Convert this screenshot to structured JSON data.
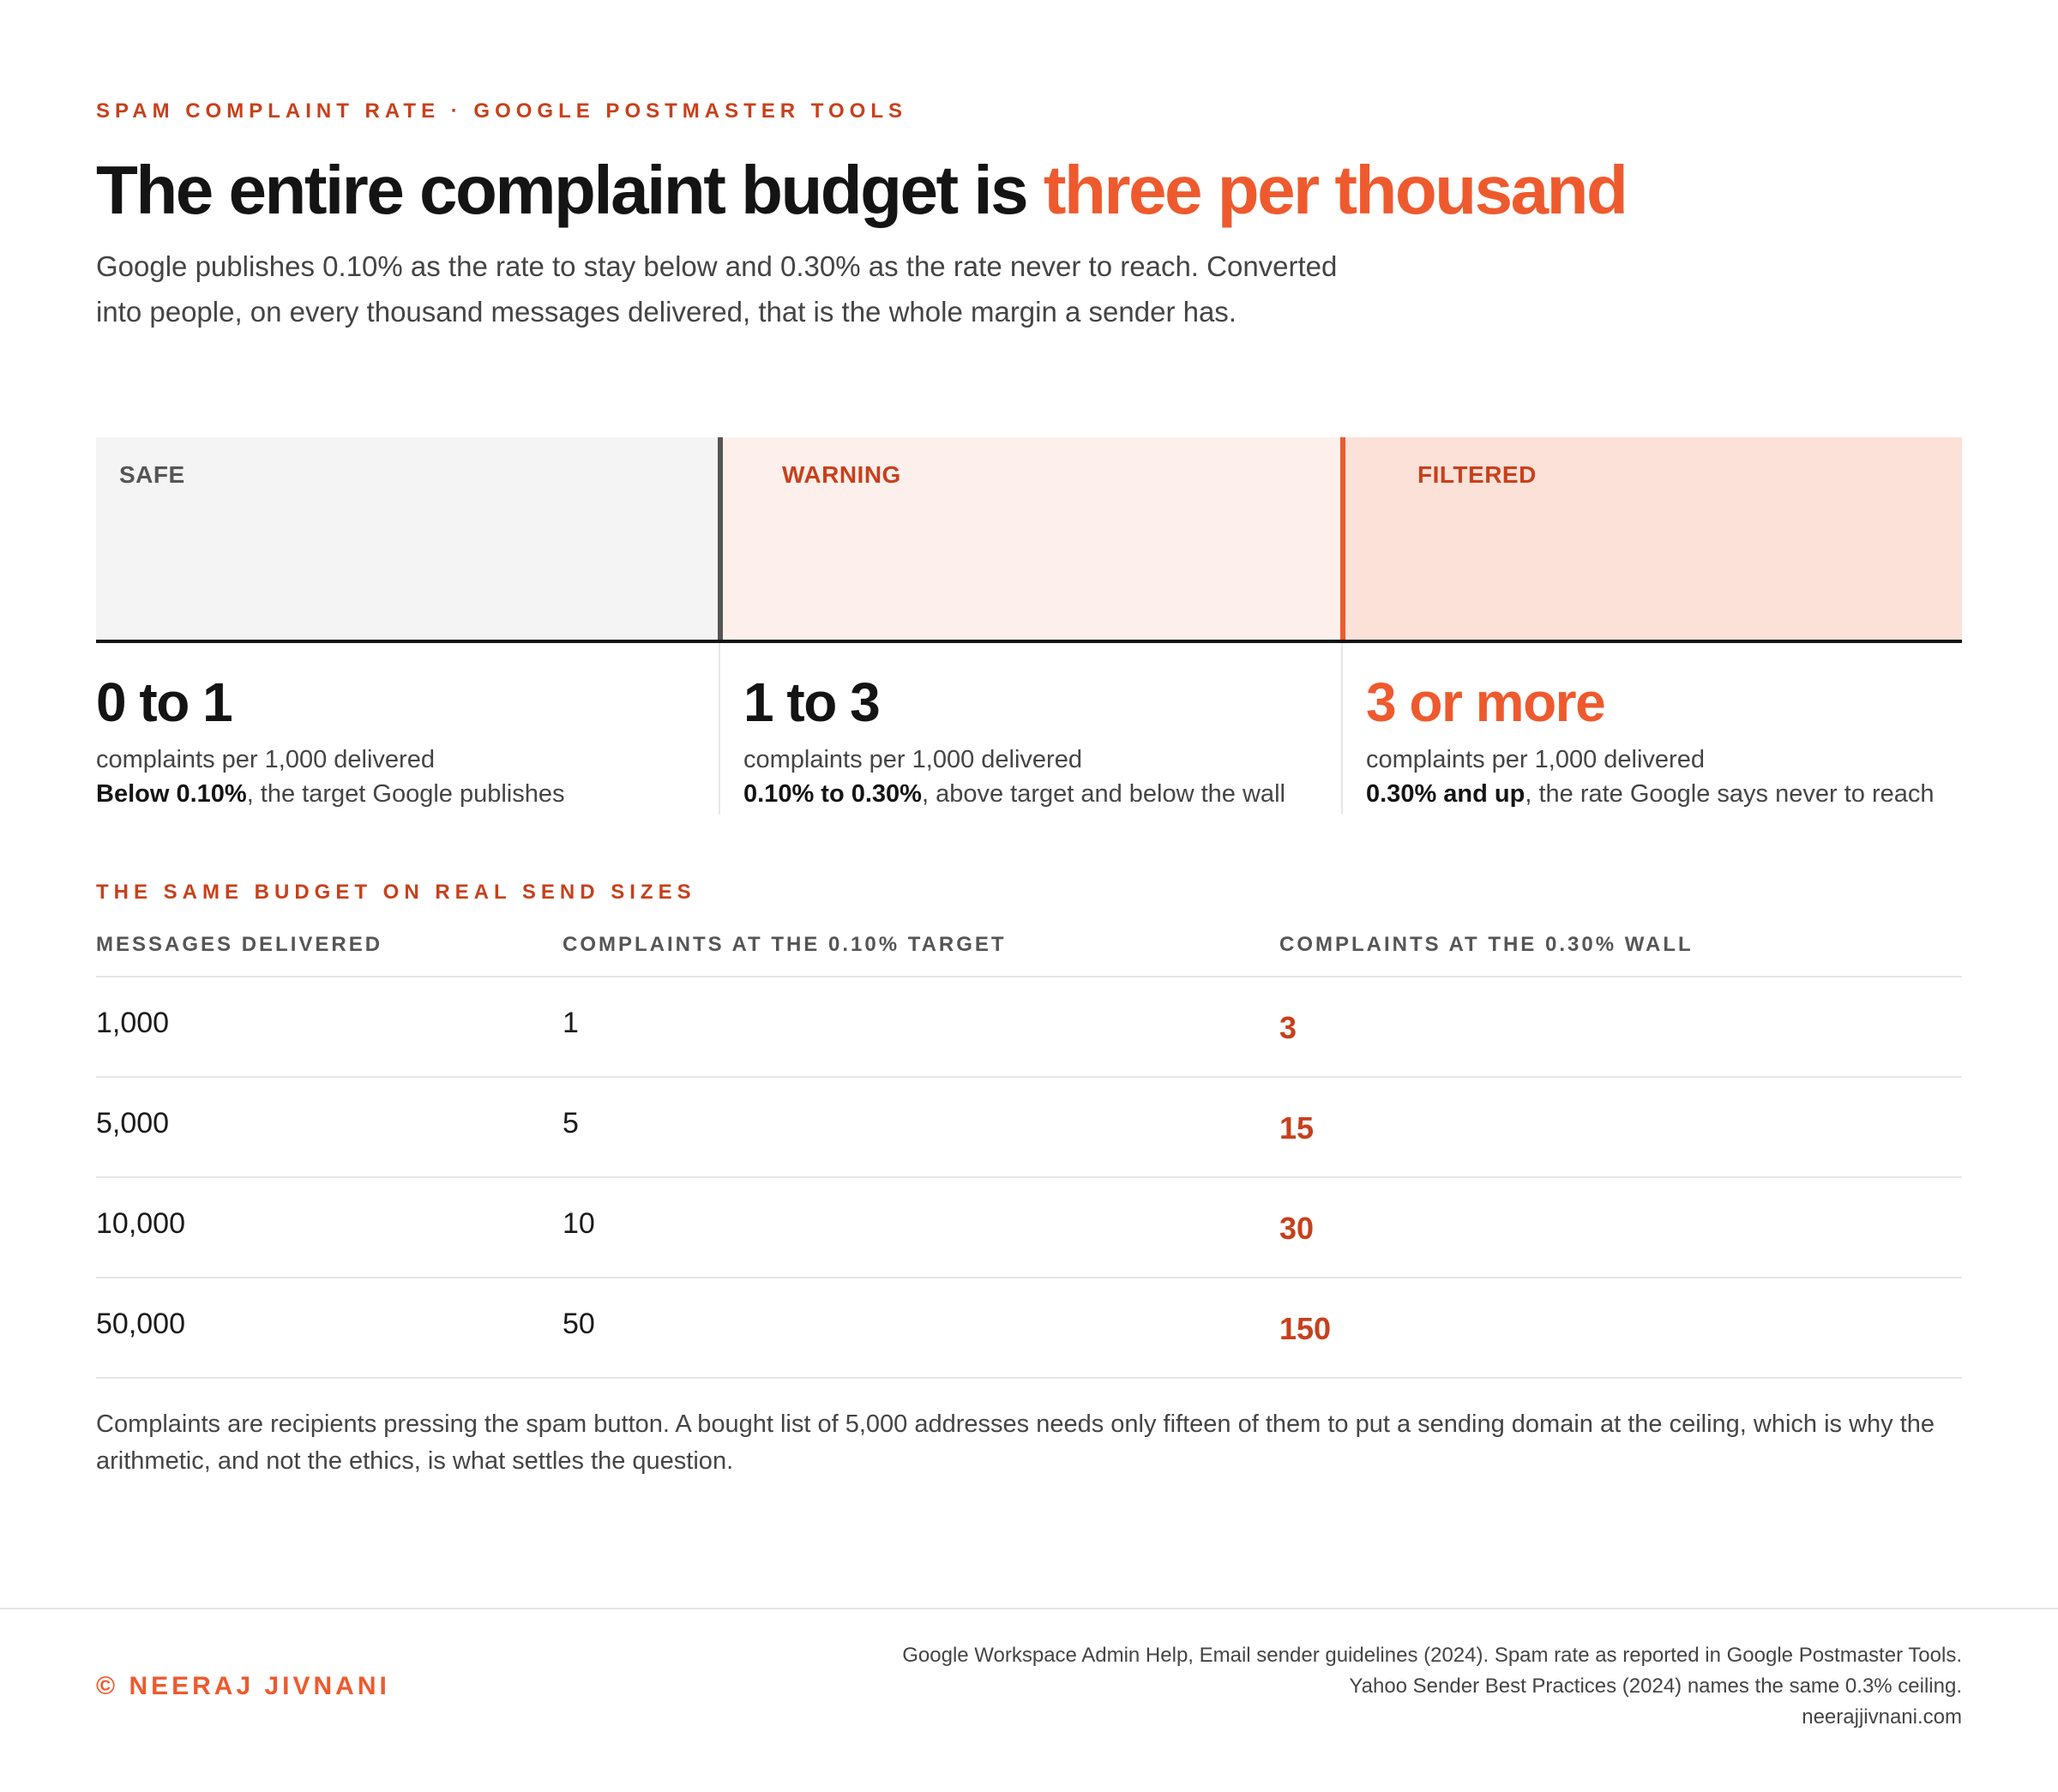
{
  "eyebrow": "SPAM COMPLAINT RATE · GOOGLE POSTMASTER TOOLS",
  "headline": {
    "lead": "The entire complaint budget is ",
    "accent": "three per thousand"
  },
  "intro": "Google publishes 0.10% as the rate to stay below and 0.30% as the rate never to reach. Converted into people, on every thousand messages delivered, that is the whole margin a sender has.",
  "colors": {
    "accent": "#ee5a2e",
    "accent_dark": "#c8401c",
    "ink": "#141414",
    "safe_band": "#f4f4f4",
    "warning_band": "#fdf0ec",
    "filtered_band": "#fce1d8"
  },
  "chart_data": [
    {
      "type": "bar",
      "orientation": "horizontal-bands",
      "unit": "complaints per 1,000 delivered",
      "zones": [
        {
          "label": "SAFE",
          "range": "0 to 1",
          "from": 0,
          "to": 1,
          "unit": "complaints per 1,000 delivered",
          "note_bold": "Below 0.10%",
          "note_rest": ", the target Google publishes"
        },
        {
          "label": "WARNING",
          "range": "1 to 3",
          "from": 1,
          "to": 3,
          "unit": "complaints per 1,000 delivered",
          "note_bold": "0.10% to 0.30%",
          "note_rest": ", above target and below the wall"
        },
        {
          "label": "FILTERED",
          "range": "3 or more",
          "from": 3,
          "to": null,
          "unit": "complaints per 1,000 delivered",
          "note_bold": "0.30% and up",
          "note_rest": ", the rate Google says never to reach"
        }
      ]
    },
    {
      "type": "table",
      "title": "THE SAME BUDGET ON REAL SEND SIZES",
      "columns": [
        "MESSAGES DELIVERED",
        "COMPLAINTS AT THE 0.10% TARGET",
        "COMPLAINTS AT THE 0.30% WALL"
      ],
      "rows": [
        {
          "delivered": "1,000",
          "target": "1",
          "wall": "3"
        },
        {
          "delivered": "5,000",
          "target": "5",
          "wall": "15"
        },
        {
          "delivered": "10,000",
          "target": "10",
          "wall": "30"
        },
        {
          "delivered": "50,000",
          "target": "50",
          "wall": "150"
        }
      ]
    }
  ],
  "footnote": "Complaints are recipients pressing the spam button. A bought list of 5,000 addresses needs only fifteen of them to put a sending domain at the ceiling, which is why the arithmetic, and not the ethics, is what settles the question.",
  "footer": {
    "credit": "© NEERAJ JIVNANI",
    "sources": [
      "Google Workspace Admin Help, Email sender guidelines (2024). Spam rate as reported in Google Postmaster Tools.",
      "Yahoo Sender Best Practices (2024) names the same 0.3% ceiling.",
      "neerajjivnani.com"
    ]
  }
}
